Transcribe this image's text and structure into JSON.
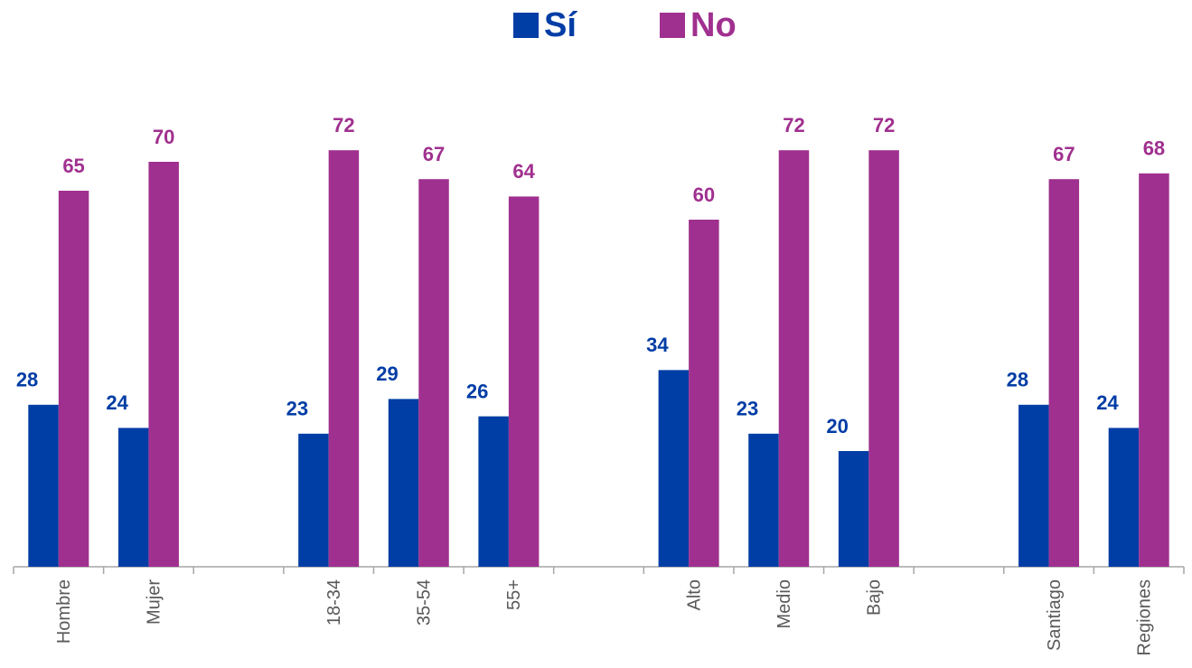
{
  "chart_data": {
    "type": "bar",
    "categories": [
      "Hombre",
      "Mujer",
      null,
      "18-34",
      "35-54",
      "55+",
      null,
      "Alto",
      "Medio",
      "Bajo",
      null,
      "Santiago",
      "Regiones"
    ],
    "series": [
      {
        "name": "Sí",
        "color": "#003da5",
        "values": [
          28,
          24,
          null,
          23,
          29,
          26,
          null,
          34,
          23,
          20,
          null,
          28,
          24
        ]
      },
      {
        "name": "No",
        "color": "#a0308f",
        "values": [
          65,
          70,
          null,
          72,
          67,
          64,
          null,
          60,
          72,
          72,
          null,
          67,
          68
        ]
      }
    ],
    "ylim": [
      0,
      95
    ]
  }
}
